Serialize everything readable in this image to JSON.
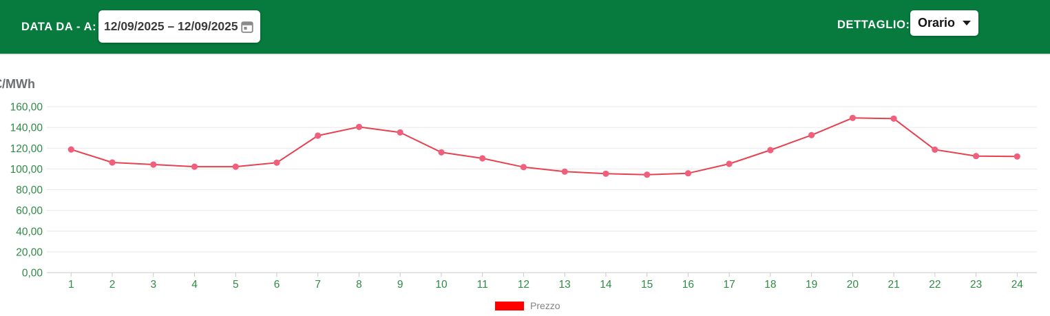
{
  "header": {
    "date_label": "DATA DA - A:",
    "date_value": "12/09/2025 – 12/09/2025",
    "detail_label": "DETTAGLIO:",
    "detail_value": "Orario",
    "bg_color": "#077a3e"
  },
  "chart_data": {
    "type": "line",
    "title": "",
    "ylabel": "€/MWh",
    "xlabel": "",
    "categories": [
      1,
      2,
      3,
      4,
      5,
      6,
      7,
      8,
      9,
      10,
      11,
      12,
      13,
      14,
      15,
      16,
      17,
      18,
      19,
      20,
      21,
      22,
      23,
      24
    ],
    "series": [
      {
        "name": "Prezzo",
        "values": [
          118.8,
          106.2,
          104.2,
          102.2,
          102.2,
          106.0,
          132.1,
          140.5,
          135.2,
          116.0,
          110.2,
          101.8,
          97.4,
          95.4,
          94.5,
          95.8,
          104.9,
          118.2,
          132.6,
          149.2,
          148.5,
          118.6,
          112.4,
          112.0
        ],
        "line_color": "#e8404f",
        "marker_color": "#f0607c",
        "legend_swatch_color": "#fe0000"
      }
    ],
    "y_ticks": [
      0,
      20,
      40,
      60,
      80,
      100,
      120,
      140,
      160
    ],
    "ylim": [
      0,
      160
    ],
    "grid": true,
    "legend_position": "bottom",
    "tick_label_color": "#2e8b44",
    "grid_color": "#e7e7e7",
    "axis_color": "#c9c9c9",
    "decimal_separator": ","
  }
}
